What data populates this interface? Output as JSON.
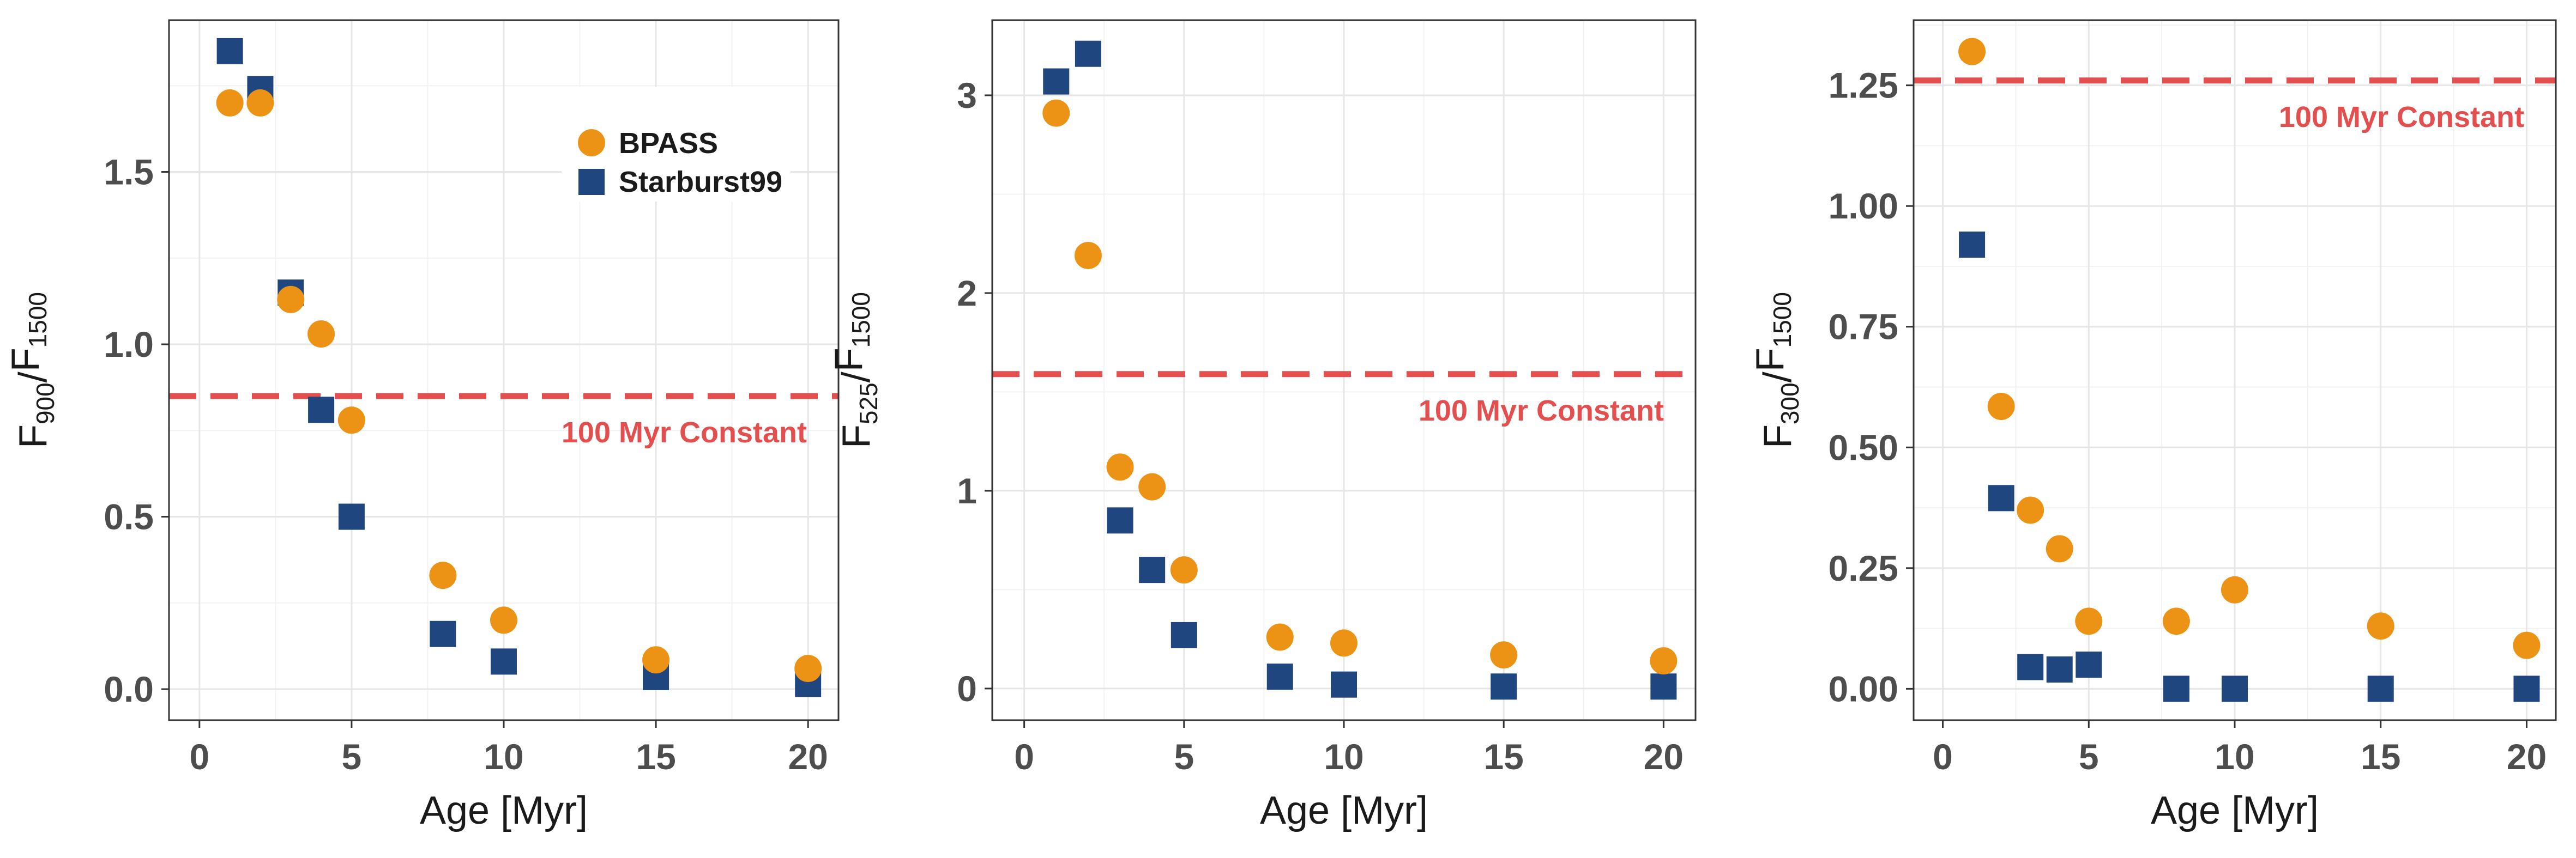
{
  "chart_data": [
    {
      "type": "scatter",
      "xlabel": "Age [Myr]",
      "ylabel": "F900/F1500",
      "ylabel_parts": {
        "main": "F",
        "num_sub": "900",
        "slash": "/",
        "den": "F",
        "den_sub": "1500"
      },
      "xlim": [
        -1,
        21
      ],
      "ylim": [
        -0.09,
        1.94
      ],
      "x_ticks": [
        0,
        5,
        10,
        15,
        20
      ],
      "x_tick_labels": [
        "0",
        "5",
        "10",
        "15",
        "20"
      ],
      "y_ticks": [
        0.0,
        0.5,
        1.0,
        1.5
      ],
      "y_tick_labels": [
        "0.0",
        "0.5",
        "1.0",
        "1.5"
      ],
      "grid": true,
      "legend_position": "top-right",
      "legend": [
        "BPASS",
        "Starburst99"
      ],
      "constant": {
        "value": 0.85,
        "label": "100 Myr Constant",
        "label_position": "below-right"
      },
      "series": [
        {
          "name": "BPASS",
          "marker": "circle",
          "color": "#ec9316",
          "x": [
            1,
            2,
            3,
            4,
            5,
            8,
            10,
            15,
            20
          ],
          "y": [
            1.7,
            1.7,
            1.13,
            1.03,
            0.78,
            0.33,
            0.2,
            0.085,
            0.06
          ]
        },
        {
          "name": "Starburst99",
          "marker": "square",
          "color": "#1f467e",
          "x": [
            1,
            2,
            3,
            4,
            5,
            8,
            10,
            15,
            20
          ],
          "y": [
            1.85,
            1.74,
            1.15,
            0.81,
            0.5,
            0.16,
            0.08,
            0.035,
            0.015
          ]
        }
      ]
    },
    {
      "type": "scatter",
      "xlabel": "Age [Myr]",
      "ylabel": "F525/F1500",
      "ylabel_parts": {
        "main": "F",
        "num_sub": "525",
        "slash": "/",
        "den": "F",
        "den_sub": "1500"
      },
      "xlim": [
        -1,
        21
      ],
      "ylim": [
        -0.16,
        3.38
      ],
      "x_ticks": [
        0,
        5,
        10,
        15,
        20
      ],
      "x_tick_labels": [
        "0",
        "5",
        "10",
        "15",
        "20"
      ],
      "y_ticks": [
        0,
        1,
        2,
        3
      ],
      "y_tick_labels": [
        "0",
        "1",
        "2",
        "3"
      ],
      "grid": true,
      "constant": {
        "value": 1.59,
        "label": "100 Myr Constant",
        "label_position": "below-right"
      },
      "series": [
        {
          "name": "BPASS",
          "marker": "circle",
          "color": "#ec9316",
          "x": [
            1,
            2,
            3,
            4,
            5,
            8,
            10,
            15,
            20
          ],
          "y": [
            2.91,
            2.19,
            1.12,
            1.02,
            0.6,
            0.26,
            0.23,
            0.17,
            0.14
          ]
        },
        {
          "name": "Starburst99",
          "marker": "square",
          "color": "#1f467e",
          "x": [
            1,
            2,
            3,
            4,
            5,
            8,
            10,
            15,
            20
          ],
          "y": [
            3.07,
            3.21,
            0.85,
            0.6,
            0.27,
            0.06,
            0.02,
            0.01,
            0.01
          ]
        }
      ]
    },
    {
      "type": "scatter",
      "xlabel": "Age [Myr]",
      "ylabel": "F300/F1500",
      "ylabel_parts": {
        "main": "F",
        "num_sub": "300",
        "slash": "/",
        "den": "F",
        "den_sub": "1500"
      },
      "xlim": [
        -1,
        21
      ],
      "ylim": [
        -0.065,
        1.385
      ],
      "x_ticks": [
        0,
        5,
        10,
        15,
        20
      ],
      "x_tick_labels": [
        "0",
        "5",
        "10",
        "15",
        "20"
      ],
      "y_ticks": [
        0.0,
        0.25,
        0.5,
        0.75,
        1.0,
        1.25
      ],
      "y_tick_labels": [
        "0.00",
        "0.25",
        "0.50",
        "0.75",
        "1.00",
        "1.25"
      ],
      "grid": true,
      "constant": {
        "value": 1.26,
        "label": "100 Myr Constant",
        "label_position": "below-right"
      },
      "series": [
        {
          "name": "BPASS",
          "marker": "circle",
          "color": "#ec9316",
          "x": [
            1,
            2,
            3,
            4,
            5,
            8,
            10,
            15,
            20
          ],
          "y": [
            1.32,
            0.585,
            0.37,
            0.29,
            0.14,
            0.14,
            0.205,
            0.13,
            0.09
          ]
        },
        {
          "name": "Starburst99",
          "marker": "square",
          "color": "#1f467e",
          "x": [
            1,
            2,
            3,
            4,
            5,
            8,
            10,
            15,
            20
          ],
          "y": [
            0.92,
            0.395,
            0.045,
            0.04,
            0.05,
            0.0,
            0.0,
            0.0,
            0.0
          ]
        }
      ]
    }
  ],
  "colors": {
    "bpass": "#ec9316",
    "starburst99": "#1f467e",
    "constant": "#e34f4f",
    "grid_major": "#e6e6e6",
    "grid_minor": "#f2f2f2",
    "panel_border": "#333333"
  }
}
